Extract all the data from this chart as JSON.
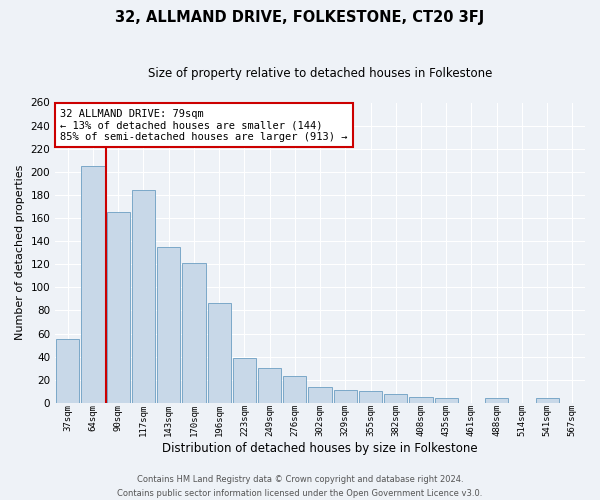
{
  "title": "32, ALLMAND DRIVE, FOLKESTONE, CT20 3FJ",
  "subtitle": "Size of property relative to detached houses in Folkestone",
  "xlabel": "Distribution of detached houses by size in Folkestone",
  "ylabel": "Number of detached properties",
  "categories": [
    "37sqm",
    "64sqm",
    "90sqm",
    "117sqm",
    "143sqm",
    "170sqm",
    "196sqm",
    "223sqm",
    "249sqm",
    "276sqm",
    "302sqm",
    "329sqm",
    "355sqm",
    "382sqm",
    "408sqm",
    "435sqm",
    "461sqm",
    "488sqm",
    "514sqm",
    "541sqm",
    "567sqm"
  ],
  "values": [
    55,
    205,
    165,
    184,
    135,
    121,
    86,
    39,
    30,
    23,
    14,
    11,
    10,
    8,
    5,
    4,
    0,
    4,
    0,
    4,
    0
  ],
  "bar_color": "#c8d8e8",
  "bar_edge_color": "#7ba8c8",
  "vline_color": "#cc0000",
  "vline_position": 1.5,
  "annotation_text": "32 ALLMAND DRIVE: 79sqm\n← 13% of detached houses are smaller (144)\n85% of semi-detached houses are larger (913) →",
  "annotation_box_facecolor": "#ffffff",
  "annotation_box_edgecolor": "#cc0000",
  "ylim": [
    0,
    260
  ],
  "yticks": [
    0,
    20,
    40,
    60,
    80,
    100,
    120,
    140,
    160,
    180,
    200,
    220,
    240,
    260
  ],
  "background_color": "#eef2f7",
  "grid_color": "#ffffff",
  "footer_line1": "Contains HM Land Registry data © Crown copyright and database right 2024.",
  "footer_line2": "Contains public sector information licensed under the Open Government Licence v3.0."
}
